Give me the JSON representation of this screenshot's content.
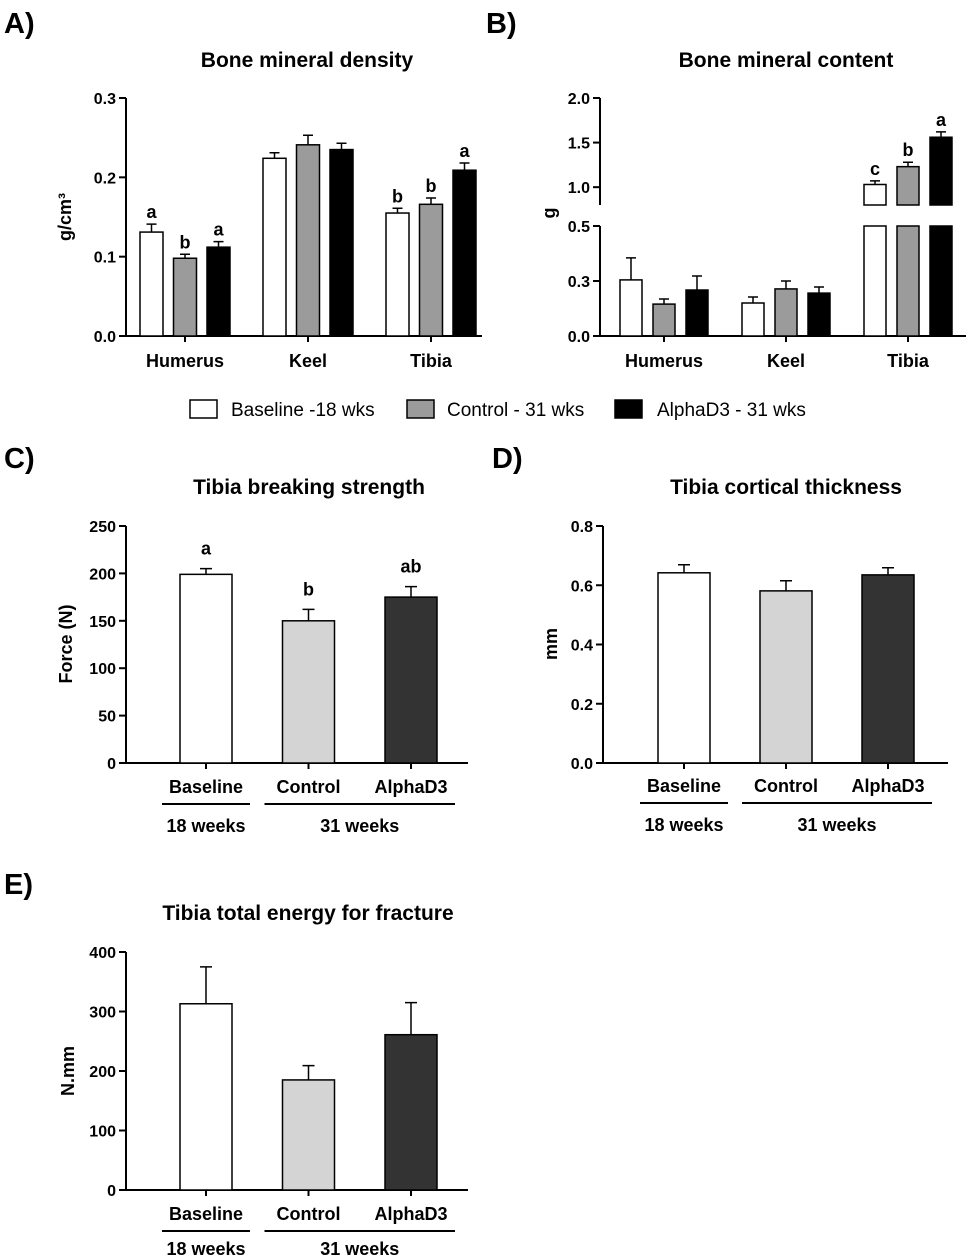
{
  "legend": {
    "items": [
      {
        "label": "Baseline -18 wks",
        "color": "#ffffff"
      },
      {
        "label": "Control - 31 wks",
        "color": "#9b9b9b"
      },
      {
        "label": "AlphaD3 - 31 wks",
        "color": "#000000"
      }
    ]
  },
  "chart_data": [
    {
      "panel": "A)",
      "type": "bar",
      "title": "Bone mineral density",
      "ylabel": "g/cm³",
      "categories": [
        "Humerus",
        "Keel",
        "Tibia"
      ],
      "ylim": [
        0,
        0.3
      ],
      "yticks": [
        0,
        0.1,
        0.2,
        0.3
      ],
      "ytick_labels": [
        "0.0",
        "0.1",
        "0.2",
        "0.3"
      ],
      "series": [
        {
          "color": "#ffffff",
          "values": [
            0.131,
            0.224,
            0.155
          ],
          "errors": [
            0.01,
            0.007,
            0.006
          ],
          "letters": [
            "a",
            null,
            "b"
          ]
        },
        {
          "color": "#9b9b9b",
          "values": [
            0.098,
            0.241,
            0.166
          ],
          "errors": [
            0.005,
            0.012,
            0.008
          ],
          "letters": [
            "b",
            null,
            "b"
          ]
        },
        {
          "color": "#000000",
          "values": [
            0.112,
            0.235,
            0.209
          ],
          "errors": [
            0.007,
            0.008,
            0.009
          ],
          "letters": [
            "a",
            null,
            "a"
          ]
        }
      ]
    },
    {
      "panel": "B)",
      "type": "bar",
      "title": "Bone mineral content",
      "ylabel": "g",
      "categories": [
        "Humerus",
        "Keel",
        "Tibia"
      ],
      "y_segments": [
        {
          "range": [
            0,
            0.5
          ],
          "ticks": [
            0,
            0.25,
            0.5
          ],
          "tick_labels": [
            "0.0",
            "0.3",
            "0.5"
          ]
        },
        {
          "range": [
            0.8,
            2.0
          ],
          "ticks": [
            1.0,
            1.5,
            2.0
          ],
          "tick_labels": [
            "1.0",
            "1.5",
            "2.0"
          ]
        }
      ],
      "series": [
        {
          "color": "#ffffff",
          "values": [
            0.255,
            0.15,
            1.03
          ],
          "errors": [
            0.1,
            0.027,
            0.04
          ],
          "letters": [
            null,
            null,
            "c"
          ]
        },
        {
          "color": "#9b9b9b",
          "values": [
            0.145,
            0.214,
            1.23
          ],
          "errors": [
            0.023,
            0.036,
            0.05
          ],
          "letters": [
            null,
            null,
            "b"
          ]
        },
        {
          "color": "#000000",
          "values": [
            0.209,
            0.195,
            1.56
          ],
          "errors": [
            0.064,
            0.028,
            0.06
          ],
          "letters": [
            null,
            null,
            "a"
          ]
        }
      ]
    },
    {
      "panel": "C)",
      "type": "bar",
      "title": "Tibia breaking strength",
      "ylabel": "Force (N)",
      "categories": [
        "Baseline",
        "Control",
        "AlphaD3"
      ],
      "groups": [
        {
          "label": "18 weeks",
          "categories": [
            0,
            0
          ]
        },
        {
          "label": "31 weeks",
          "categories": [
            1,
            2
          ]
        }
      ],
      "ylim": [
        0,
        250
      ],
      "yticks": [
        0,
        50,
        100,
        150,
        200,
        250
      ],
      "ytick_labels": [
        "0",
        "50",
        "100",
        "150",
        "200",
        "250"
      ],
      "values": [
        199,
        150,
        175
      ],
      "errors": [
        6,
        12,
        11
      ],
      "letters": [
        "a",
        "b",
        "ab"
      ],
      "colors": [
        "#ffffff",
        "#d4d4d4",
        "#333333"
      ]
    },
    {
      "panel": "D)",
      "type": "bar",
      "title": "Tibia cortical thickness",
      "ylabel": "mm",
      "categories": [
        "Baseline",
        "Control",
        "AlphaD3"
      ],
      "groups": [
        {
          "label": "18 weeks",
          "categories": [
            0,
            0
          ]
        },
        {
          "label": "31 weeks",
          "categories": [
            1,
            2
          ]
        }
      ],
      "ylim": [
        0,
        0.8
      ],
      "yticks": [
        0,
        0.2,
        0.4,
        0.6,
        0.8
      ],
      "ytick_labels": [
        "0.0",
        "0.2",
        "0.4",
        "0.6",
        "0.8"
      ],
      "values": [
        0.642,
        0.581,
        0.635
      ],
      "errors": [
        0.027,
        0.034,
        0.024
      ],
      "colors": [
        "#ffffff",
        "#d4d4d4",
        "#333333"
      ]
    },
    {
      "panel": "E)",
      "type": "bar",
      "title": "Tibia total energy for fracture",
      "ylabel": "N.mm",
      "categories": [
        "Baseline",
        "Control",
        "AlphaD3"
      ],
      "groups": [
        {
          "label": "18 weeks",
          "categories": [
            0,
            0
          ]
        },
        {
          "label": "31 weeks",
          "categories": [
            1,
            2
          ]
        }
      ],
      "ylim": [
        0,
        400
      ],
      "yticks": [
        0,
        100,
        200,
        300,
        400
      ],
      "ytick_labels": [
        "0",
        "100",
        "200",
        "300",
        "400"
      ],
      "values": [
        313,
        185,
        261
      ],
      "errors": [
        62,
        24,
        54
      ],
      "colors": [
        "#ffffff",
        "#d4d4d4",
        "#333333"
      ]
    }
  ]
}
